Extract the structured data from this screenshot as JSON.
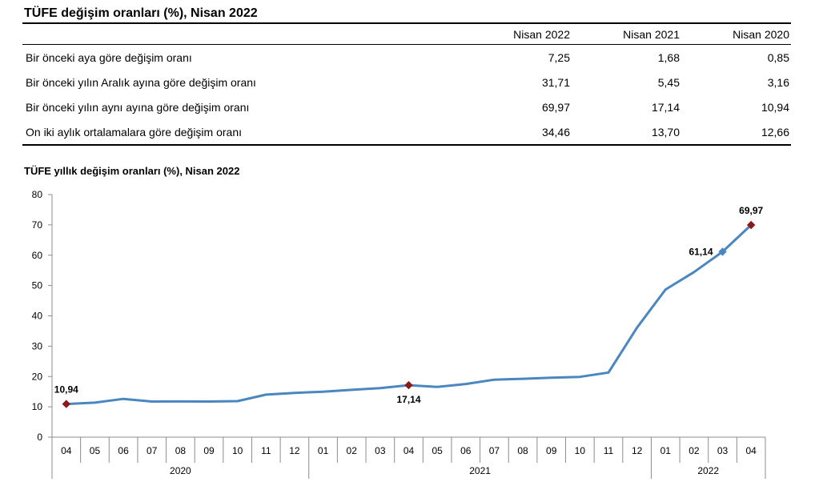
{
  "table": {
    "title": "TÜFE değişim oranları (%), Nisan 2022",
    "columns": [
      "Nisan 2022",
      "Nisan 2021",
      "Nisan 2020"
    ],
    "rows": [
      {
        "label": "Bir önceki aya göre değişim oranı",
        "values": [
          "7,25",
          "1,68",
          "0,85"
        ]
      },
      {
        "label": "Bir önceki yılın Aralık ayına göre değişim oranı",
        "values": [
          "31,71",
          "5,45",
          "3,16"
        ]
      },
      {
        "label": "Bir önceki yılın aynı ayına göre değişim oranı",
        "values": [
          "69,97",
          "17,14",
          "10,94"
        ]
      },
      {
        "label": "On iki aylık ortalamalara göre değişim oranı",
        "values": [
          "34,46",
          "13,70",
          "12,66"
        ]
      }
    ]
  },
  "chart_data": {
    "type": "line",
    "title": "TÜFE yıllık değişim oranları (%), Nisan 2022",
    "xlabel": "",
    "ylabel": "",
    "ylim": [
      0,
      80
    ],
    "yticks": [
      "0",
      "10",
      "20",
      "30",
      "40",
      "50",
      "60",
      "70",
      "80"
    ],
    "grid": false,
    "categories": [
      "04",
      "05",
      "06",
      "07",
      "08",
      "09",
      "10",
      "11",
      "12",
      "01",
      "02",
      "03",
      "04",
      "05",
      "06",
      "07",
      "08",
      "09",
      "10",
      "11",
      "12",
      "01",
      "02",
      "03",
      "04"
    ],
    "year_groups": [
      {
        "label": "2020",
        "count": 9
      },
      {
        "label": "2021",
        "count": 12
      },
      {
        "label": "2022",
        "count": 4
      }
    ],
    "series": [
      {
        "color": "#4a86c0",
        "values": [
          10.94,
          11.39,
          12.62,
          11.76,
          11.77,
          11.75,
          11.89,
          14.03,
          14.6,
          14.97,
          15.61,
          16.19,
          17.14,
          16.59,
          17.53,
          18.95,
          19.25,
          19.58,
          19.89,
          21.31,
          36.08,
          48.69,
          54.44,
          61.14,
          69.97
        ]
      }
    ],
    "annotations": [
      {
        "index": 0,
        "label": "10,94",
        "marker": "diamond",
        "marker_color": "#8b1a1a",
        "position": "above"
      },
      {
        "index": 12,
        "label": "17,14",
        "marker": "diamond",
        "marker_color": "#8b1a1a",
        "position": "below"
      },
      {
        "index": 23,
        "label": "61,14",
        "marker": "diamond",
        "marker_color": "#4a86c0",
        "position": "left"
      },
      {
        "index": 24,
        "label": "69,97",
        "marker": "diamond",
        "marker_color": "#8b1a1a",
        "position": "above"
      }
    ]
  }
}
